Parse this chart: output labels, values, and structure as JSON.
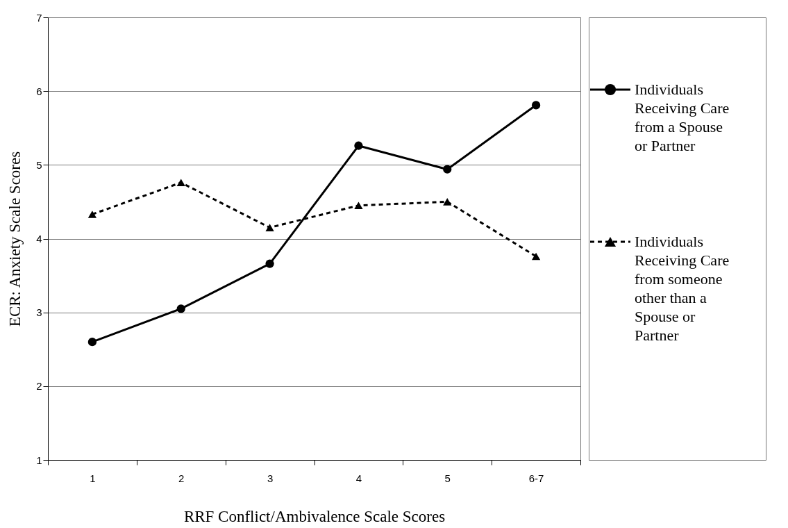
{
  "chart_data": {
    "type": "line",
    "xlabel": "RRF Conflict/Ambivalence Scale Scores",
    "ylabel": "ECR: Anxiety Scale Scores",
    "categories": [
      "1",
      "2",
      "3",
      "4",
      "5",
      "6-7"
    ],
    "series": [
      {
        "name": "Individuals Receiving Care from a Spouse or Partner",
        "color": "#000000",
        "marker": "circle",
        "line_style": "solid",
        "values": [
          2.6,
          3.05,
          3.66,
          5.26,
          4.94,
          5.81
        ]
      },
      {
        "name": "Individuals Receiving Care from someone other than a Spouse or Partner",
        "color": "#000000",
        "marker": "triangle",
        "line_style": "dashed",
        "values": [
          4.33,
          4.76,
          4.15,
          4.45,
          4.5,
          3.76
        ]
      }
    ],
    "ylim": [
      1,
      7
    ],
    "yticks": [
      1,
      2,
      3,
      4,
      5,
      6,
      7
    ],
    "grid": "y",
    "legend": "right"
  }
}
